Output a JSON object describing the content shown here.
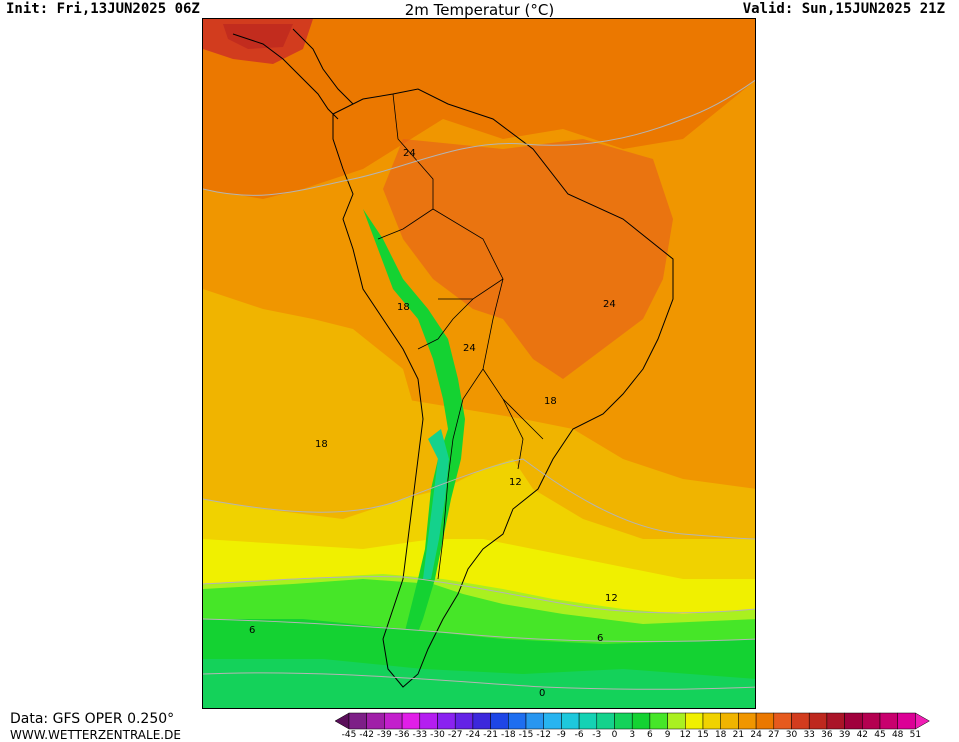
{
  "header": {
    "init": "Init: Fri,13JUN2025 06Z",
    "title": "2m Temperatur (°C)",
    "valid": "Valid: Sun,15JUN2025 21Z"
  },
  "footer": {
    "data_source": "Data: GFS OPER 0.250°",
    "website": "WWW.WETTERZENTRALE.DE"
  },
  "map": {
    "region": "South America",
    "isotherm_labels": [
      "24",
      "18",
      "24",
      "24",
      "18",
      "18",
      "12",
      "12",
      "6",
      "6",
      "0"
    ]
  },
  "colorbar": {
    "labels": [
      "-45",
      "-42",
      "-39",
      "-36",
      "-33",
      "-30",
      "-27",
      "-24",
      "-21",
      "-18",
      "-15",
      "-12",
      "-9",
      "-6",
      "-3",
      "0",
      "3",
      "6",
      "9",
      "12",
      "15",
      "18",
      "21",
      "24",
      "27",
      "30",
      "33",
      "36",
      "39",
      "42",
      "45",
      "48",
      "51"
    ],
    "colors": [
      "#5a0f5a",
      "#7d1f87",
      "#a01fa8",
      "#c31fcc",
      "#e11ee8",
      "#b41ef0",
      "#8a22f0",
      "#6423e6",
      "#3c28dc",
      "#1e46e6",
      "#1e6ef0",
      "#2896f0",
      "#28b4f0",
      "#1ec8dc",
      "#14d2b4",
      "#14d28c",
      "#14d25a",
      "#14d232",
      "#46e628",
      "#aaf020",
      "#f0f000",
      "#f0d200",
      "#f0b400",
      "#f09600",
      "#eb7800",
      "#e65a1e",
      "#d23c1e",
      "#be281e",
      "#aa1428",
      "#a0003c",
      "#b40050",
      "#c8006e",
      "#dc0096",
      "#f01eb4"
    ]
  }
}
